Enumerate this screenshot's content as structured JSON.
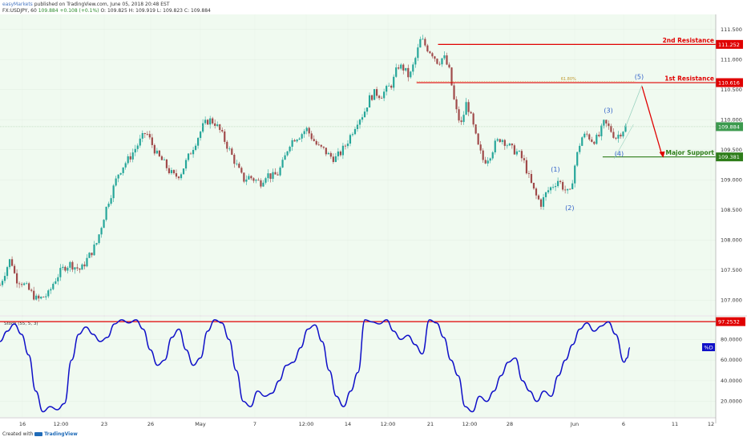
{
  "header": {
    "publisher": "easyMarkets",
    "published_text": "published on TradingView.com, June 05, 2018 20:48 EST",
    "symbol": "FX:USDJPY, 60",
    "last": "109.884",
    "change": "+0.108 (+0.1%)",
    "open": "O: 109.825",
    "high": "H: 109.919",
    "low": "L: 109.823",
    "close": "C: 109.884"
  },
  "footer": {
    "created_with": "Created with",
    "brand": "TradingView"
  },
  "colors": {
    "plot_bg": "#f0faf0",
    "resistance": "#e00000",
    "support": "#2e7d1a",
    "up_candle": "#26a69a",
    "down_candle": "#a04a4a",
    "wave_label": "#2f5fc8",
    "stoch_line": "#1010c8"
  },
  "chart_data": [
    {
      "type": "candlestick",
      "title": "",
      "price_axis_ticks": [
        "111.500",
        "111.000",
        "110.500",
        "110.000",
        "109.500",
        "109.000",
        "108.500",
        "108.000",
        "107.500",
        "107.000"
      ],
      "ylim": [
        106.75,
        111.75
      ],
      "time_axis_ticks": [
        "16",
        "12:00",
        "23",
        "26",
        "May",
        "7",
        "12:00",
        "14",
        "12:00",
        "21",
        "12:00",
        "28",
        "Jun",
        "6",
        "11",
        "12"
      ],
      "close_path": [
        [
          0,
          107.25
        ],
        [
          0.8,
          107.5
        ],
        [
          1.5,
          107.7
        ],
        [
          2.2,
          107.35
        ],
        [
          3,
          107.3
        ],
        [
          3.8,
          107.2
        ],
        [
          4.5,
          107.1
        ],
        [
          5.2,
          107.0
        ],
        [
          6,
          107.05
        ],
        [
          6.8,
          107.1
        ],
        [
          7.5,
          107.3
        ],
        [
          8.3,
          107.45
        ],
        [
          9,
          107.55
        ],
        [
          9.8,
          107.6
        ],
        [
          10.5,
          107.55
        ],
        [
          11.3,
          107.5
        ],
        [
          12,
          107.65
        ],
        [
          12.8,
          107.8
        ],
        [
          13.5,
          107.95
        ],
        [
          14.2,
          108.25
        ],
        [
          15,
          108.6
        ],
        [
          15.8,
          108.85
        ],
        [
          16.5,
          109.1
        ],
        [
          17.3,
          109.25
        ],
        [
          18,
          109.35
        ],
        [
          18.8,
          109.5
        ],
        [
          19.6,
          109.65
        ],
        [
          20.4,
          109.8
        ],
        [
          21.2,
          109.6
        ],
        [
          22,
          109.4
        ],
        [
          22.8,
          109.3
        ],
        [
          23.6,
          109.15
        ],
        [
          24.4,
          109.05
        ],
        [
          25.2,
          109.1
        ],
        [
          26,
          109.3
        ],
        [
          26.8,
          109.5
        ],
        [
          27.6,
          109.7
        ],
        [
          28.4,
          109.9
        ],
        [
          29.2,
          110.0
        ],
        [
          30,
          109.95
        ],
        [
          30.8,
          109.8
        ],
        [
          31.6,
          109.6
        ],
        [
          32.4,
          109.4
        ],
        [
          33.2,
          109.2
        ],
        [
          34,
          109.0
        ],
        [
          34.8,
          109.05
        ],
        [
          35.6,
          109.0
        ],
        [
          36.4,
          108.95
        ],
        [
          37.2,
          109.1
        ],
        [
          38,
          109.05
        ],
        [
          38.8,
          109.1
        ],
        [
          39.6,
          109.3
        ],
        [
          40.4,
          109.6
        ],
        [
          41.2,
          109.7
        ],
        [
          42,
          109.75
        ],
        [
          42.8,
          109.85
        ],
        [
          43.6,
          109.7
        ],
        [
          44.4,
          109.55
        ],
        [
          45.2,
          109.5
        ],
        [
          46,
          109.4
        ],
        [
          46.8,
          109.35
        ],
        [
          47.6,
          109.45
        ],
        [
          48.4,
          109.6
        ],
        [
          49.2,
          109.8
        ],
        [
          50,
          110.0
        ],
        [
          50.8,
          110.1
        ],
        [
          51.6,
          110.35
        ],
        [
          52.4,
          110.45
        ],
        [
          53.2,
          110.4
        ],
        [
          54,
          110.5
        ],
        [
          54.8,
          110.6
        ],
        [
          55.6,
          110.9
        ],
        [
          56.4,
          110.85
        ],
        [
          57.2,
          110.7
        ],
        [
          58,
          111.0
        ],
        [
          58.8,
          111.35
        ],
        [
          59.6,
          111.2
        ],
        [
          60.4,
          111.1
        ],
        [
          61.2,
          110.95
        ],
        [
          62,
          111.05
        ],
        [
          62.8,
          110.8
        ],
        [
          63.6,
          110.2
        ],
        [
          64.4,
          109.9
        ],
        [
          65.2,
          110.3
        ],
        [
          66,
          109.95
        ],
        [
          66.8,
          109.55
        ],
        [
          67.6,
          109.3
        ],
        [
          68.4,
          109.4
        ],
        [
          69.2,
          109.6
        ],
        [
          70,
          109.7
        ],
        [
          70.8,
          109.6
        ],
        [
          71.6,
          109.5
        ],
        [
          72.4,
          109.45
        ],
        [
          73.2,
          109.3
        ],
        [
          74,
          109.0
        ],
        [
          74.8,
          108.75
        ],
        [
          75.6,
          108.6
        ],
        [
          76.4,
          108.8
        ],
        [
          77.2,
          108.9
        ],
        [
          78,
          109.0
        ],
        [
          78.8,
          108.85
        ],
        [
          79.6,
          108.75
        ],
        [
          80.4,
          109.3
        ],
        [
          81.2,
          109.7
        ],
        [
          82,
          109.75
        ],
        [
          82.8,
          109.65
        ],
        [
          83.6,
          109.7
        ],
        [
          84.4,
          109.95
        ],
        [
          85.2,
          109.85
        ],
        [
          86,
          109.7
        ],
        [
          86.8,
          109.8
        ],
        [
          87.4,
          109.88
        ]
      ],
      "candle_count": 260,
      "levels": [
        {
          "label": "2nd Resistance",
          "price": 111.252,
          "tag": "111.252",
          "x_start": 61.2
        },
        {
          "label": "1st Resistance",
          "price": 110.616,
          "tag": "110.616",
          "x_start": 58.2
        },
        {
          "label": "Major Support",
          "price": 109.381,
          "tag": "109.381",
          "x_start": 84.2
        }
      ],
      "current_price": {
        "price": 109.884,
        "tag": "109.884"
      },
      "fib": {
        "label": "61.80%",
        "price": 110.64,
        "x_start": 58.2,
        "x_end": 88.8
      },
      "wave_labels": [
        {
          "text": "(1)",
          "x": 77.6,
          "price": 109.14
        },
        {
          "text": "(2)",
          "x": 79.6,
          "price": 108.5
        },
        {
          "text": "(3)",
          "x": 85.0,
          "price": 110.12
        },
        {
          "text": "(4)",
          "x": 86.5,
          "price": 109.4
        },
        {
          "text": "(5)",
          "x": 89.3,
          "price": 110.68
        }
      ],
      "projection": {
        "from": [
          87.4,
          109.88
        ],
        "peak": [
          89.7,
          110.58
        ],
        "target": [
          92.5,
          109.38
        ]
      }
    },
    {
      "type": "line",
      "title": "Stoch (55, 5, 3)",
      "series": [
        {
          "name": "%D"
        }
      ],
      "level": {
        "value": 97.2532,
        "tag": "97.2532"
      },
      "ylim": [
        5,
        102
      ],
      "y_ticks": [
        "80.0000",
        "60.0000",
        "40.0000",
        "20.0000"
      ],
      "points": [
        [
          0,
          78
        ],
        [
          1,
          88
        ],
        [
          2,
          95
        ],
        [
          3,
          85
        ],
        [
          4,
          65
        ],
        [
          5,
          30
        ],
        [
          6,
          10
        ],
        [
          7,
          15
        ],
        [
          8,
          12
        ],
        [
          9,
          18
        ],
        [
          10,
          60
        ],
        [
          11,
          85
        ],
        [
          12,
          92
        ],
        [
          13,
          85
        ],
        [
          14,
          78
        ],
        [
          15,
          82
        ],
        [
          16,
          95
        ],
        [
          17,
          99
        ],
        [
          18,
          96
        ],
        [
          19,
          99
        ],
        [
          20,
          90
        ],
        [
          21,
          70
        ],
        [
          22,
          55
        ],
        [
          23,
          60
        ],
        [
          24,
          82
        ],
        [
          25,
          90
        ],
        [
          26,
          70
        ],
        [
          27,
          55
        ],
        [
          28,
          62
        ],
        [
          29,
          88
        ],
        [
          30,
          99
        ],
        [
          31,
          96
        ],
        [
          32,
          80
        ],
        [
          33,
          50
        ],
        [
          34,
          20
        ],
        [
          35,
          15
        ],
        [
          36,
          30
        ],
        [
          37,
          25
        ],
        [
          38,
          28
        ],
        [
          39,
          40
        ],
        [
          40,
          55
        ],
        [
          41,
          58
        ],
        [
          42,
          72
        ],
        [
          43,
          90
        ],
        [
          44,
          94
        ],
        [
          45,
          78
        ],
        [
          46,
          50
        ],
        [
          47,
          25
        ],
        [
          48,
          15
        ],
        [
          49,
          30
        ],
        [
          50,
          48
        ],
        [
          51,
          99
        ],
        [
          52,
          97
        ],
        [
          53,
          95
        ],
        [
          54,
          99
        ],
        [
          55,
          88
        ],
        [
          56,
          80
        ],
        [
          57,
          84
        ],
        [
          58,
          75
        ],
        [
          59,
          66
        ],
        [
          60,
          99
        ],
        [
          61,
          96
        ],
        [
          62,
          82
        ],
        [
          63,
          60
        ],
        [
          64,
          45
        ],
        [
          65,
          15
        ],
        [
          66,
          10
        ],
        [
          67,
          25
        ],
        [
          68,
          20
        ],
        [
          69,
          30
        ],
        [
          70,
          45
        ],
        [
          71,
          58
        ],
        [
          72,
          62
        ],
        [
          73,
          40
        ],
        [
          74,
          30
        ],
        [
          75,
          20
        ],
        [
          76,
          30
        ],
        [
          77,
          25
        ],
        [
          78,
          45
        ],
        [
          79,
          60
        ],
        [
          80,
          75
        ],
        [
          81,
          90
        ],
        [
          82,
          96
        ],
        [
          83,
          88
        ],
        [
          84,
          93
        ],
        [
          85,
          97
        ],
        [
          86,
          85
        ],
        [
          87.2,
          58
        ],
        [
          87.6,
          62
        ],
        [
          88,
          72
        ]
      ]
    }
  ]
}
